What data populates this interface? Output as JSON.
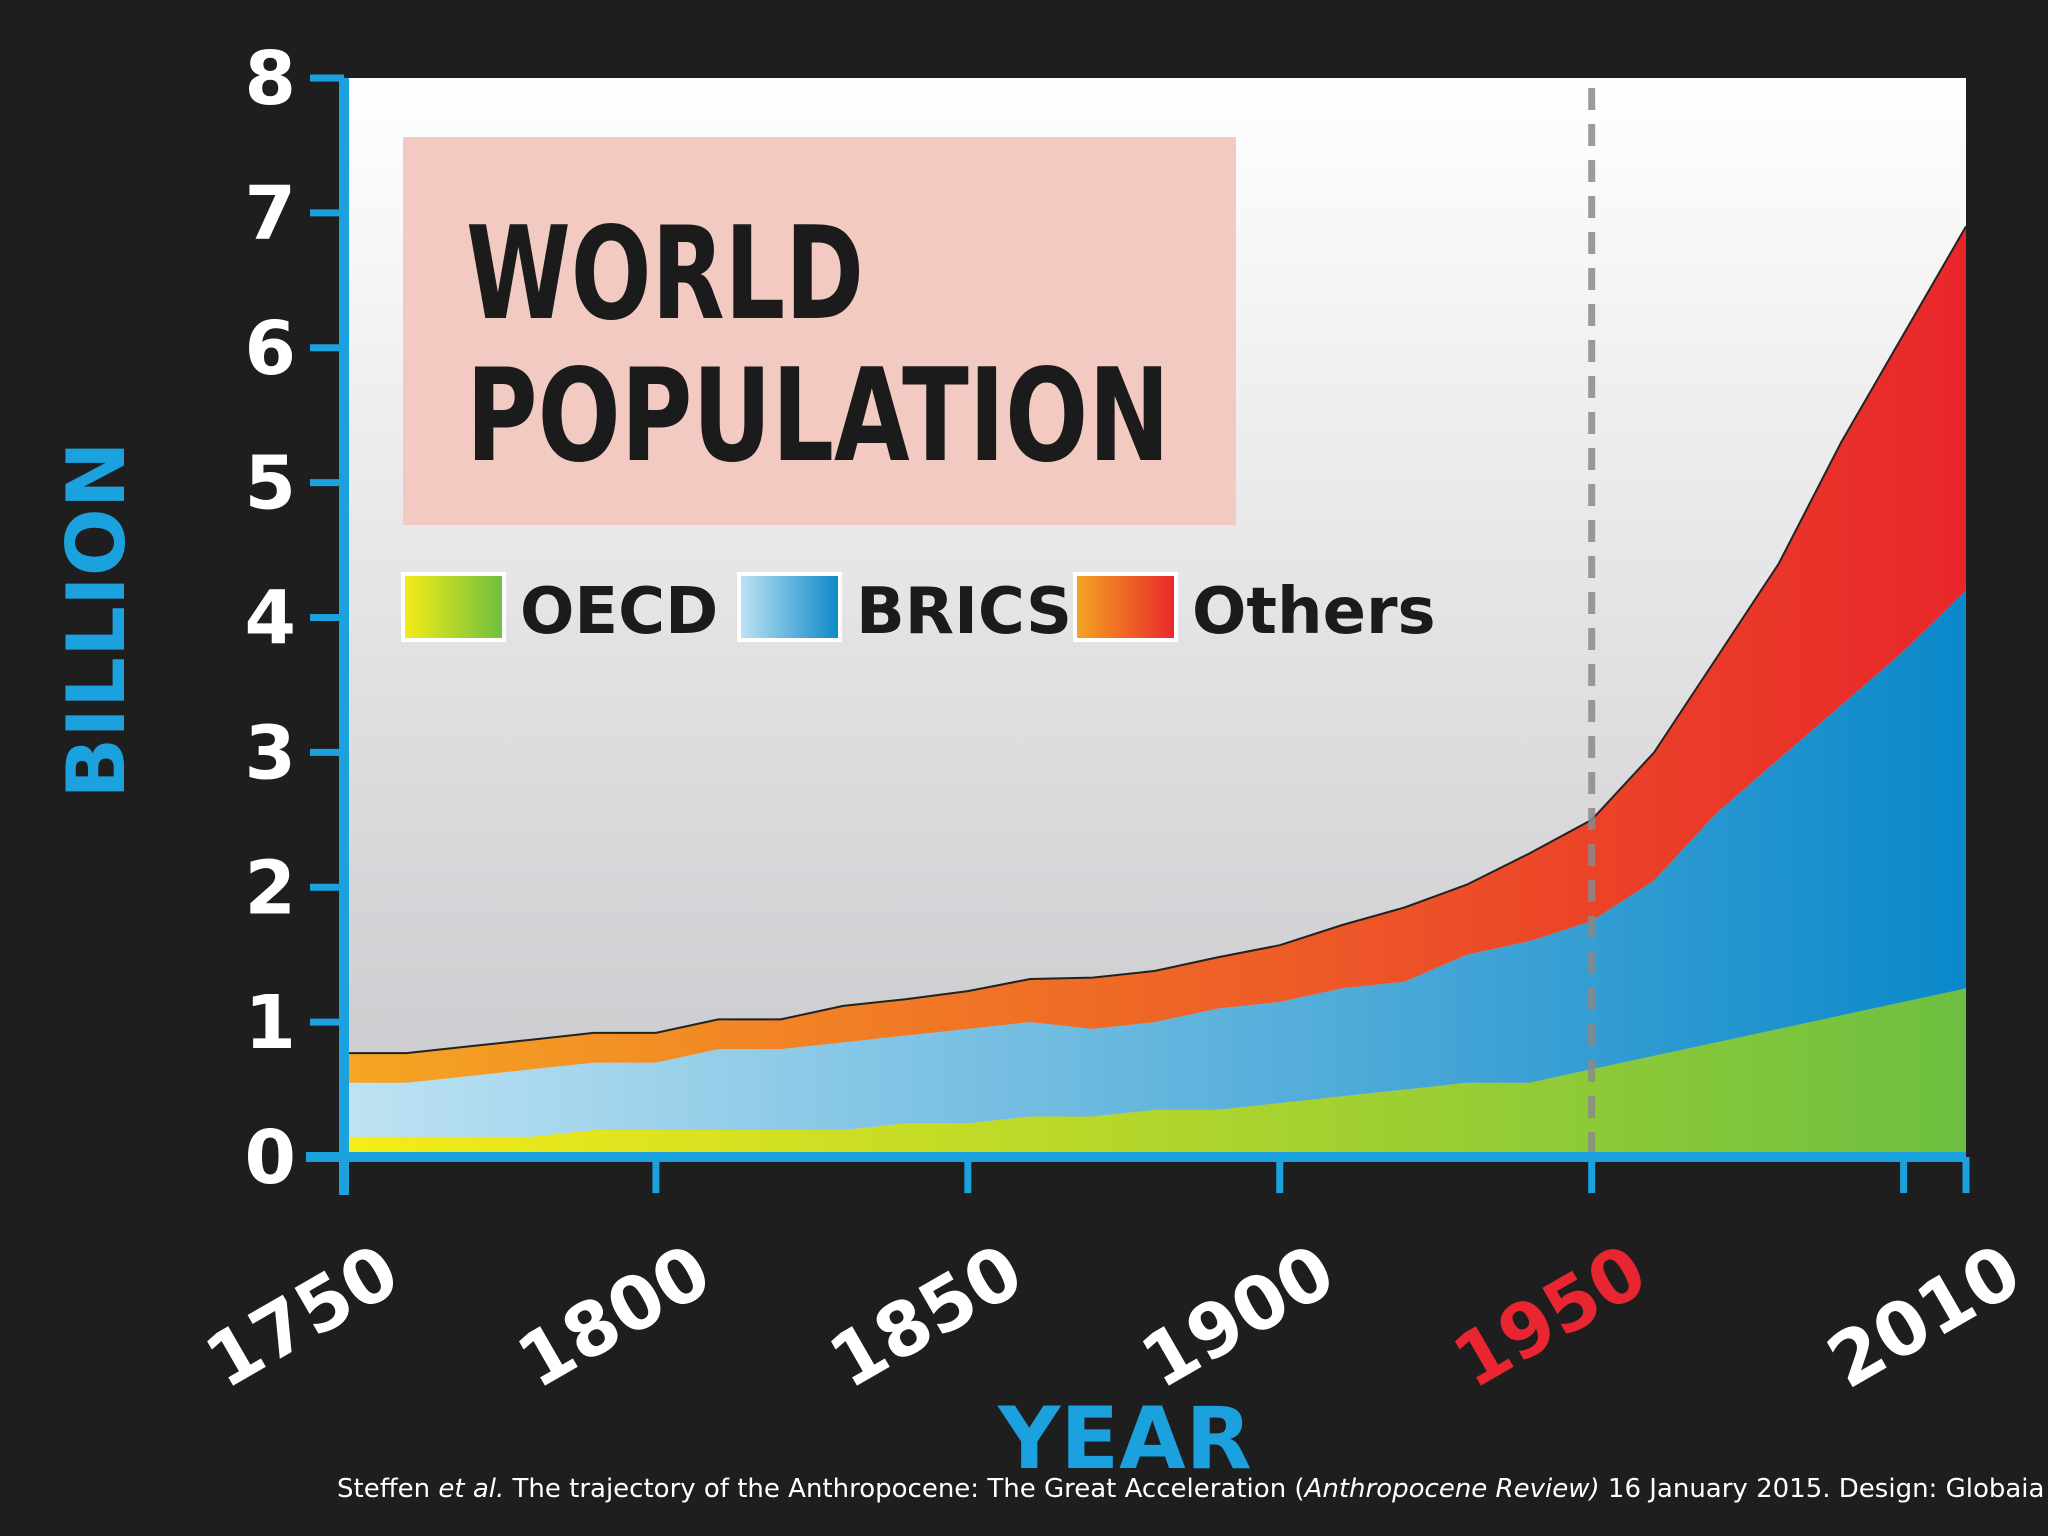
{
  "chart_data": {
    "type": "area",
    "stacked": true,
    "title_lines": [
      "WORLD",
      "POPULATION"
    ],
    "xlabel": "YEAR",
    "ylabel": "BILLION",
    "x_tick_labels": [
      "1750",
      "1800",
      "1850",
      "1900",
      "1950",
      "2010"
    ],
    "y_tick_labels": [
      "0",
      "1",
      "2",
      "3",
      "4",
      "5",
      "6",
      "7",
      "8"
    ],
    "xlim": [
      1750,
      2010
    ],
    "ylim": [
      0,
      8
    ],
    "highlight_year": 1950,
    "highlight_color": "#e82530",
    "axis_color": "#1aa1de",
    "x": [
      1750,
      1760,
      1770,
      1780,
      1790,
      1800,
      1810,
      1820,
      1830,
      1840,
      1850,
      1860,
      1870,
      1880,
      1890,
      1900,
      1910,
      1920,
      1930,
      1940,
      1950,
      1960,
      1970,
      1980,
      1990,
      2000,
      2010
    ],
    "series": [
      {
        "name": "OECD",
        "values": [
          0.15,
          0.15,
          0.15,
          0.15,
          0.2,
          0.2,
          0.2,
          0.2,
          0.2,
          0.25,
          0.25,
          0.3,
          0.3,
          0.35,
          0.35,
          0.4,
          0.45,
          0.5,
          0.55,
          0.55,
          0.65,
          0.75,
          0.85,
          0.95,
          1.05,
          1.15,
          1.25
        ],
        "colors": [
          "#f7ec17",
          "#6dbf41"
        ]
      },
      {
        "name": "BRICS",
        "values": [
          0.4,
          0.4,
          0.45,
          0.5,
          0.5,
          0.5,
          0.6,
          0.6,
          0.65,
          0.65,
          0.7,
          0.7,
          0.65,
          0.65,
          0.75,
          0.75,
          0.8,
          0.8,
          0.95,
          1.05,
          1.1,
          1.3,
          1.7,
          2.0,
          2.3,
          2.6,
          2.95
        ],
        "colors": [
          "#bfe3f3",
          "#0a88c9"
        ]
      },
      {
        "name": "Others",
        "values": [
          0.22,
          0.22,
          0.22,
          0.22,
          0.22,
          0.22,
          0.22,
          0.22,
          0.27,
          0.27,
          0.28,
          0.32,
          0.38,
          0.38,
          0.38,
          0.42,
          0.47,
          0.55,
          0.52,
          0.65,
          0.75,
          0.95,
          1.15,
          1.45,
          1.95,
          2.35,
          2.7
        ],
        "colors": [
          "#f5a623",
          "#e8262a"
        ]
      }
    ],
    "legend_position": "top-left, inside plot"
  },
  "citation": {
    "authors": "Steffen ",
    "etal": "et al.",
    "text": " The trajectory of the Anthropocene: The Great Acceleration (",
    "journal": "Anthropocene Review)",
    "tail": " 16 January 2015. Design: Globaia"
  }
}
